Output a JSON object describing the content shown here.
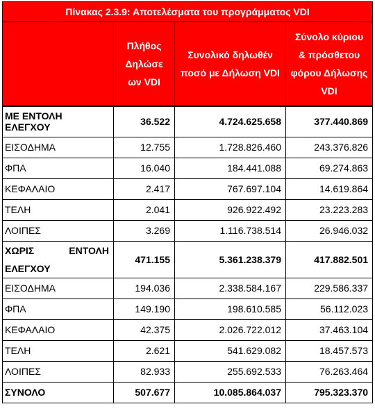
{
  "title": "Πίνακας 2.3.9: Αποτελέσματα του προγράμματος VDI",
  "headers": {
    "col1": "",
    "col2": "Πλήθος Δηλώσε ων VDI",
    "col3": "Συνολικό δηλωθέν ποσό με Δήλωση VDI",
    "col4": "Σύνολο κύριου & πρόσθετου φόρου Δήλωσης VDI"
  },
  "rows": [
    {
      "label": "ΜΕ ΕΝΤΟΛΗ ΕΛΕΓΧΟΥ",
      "count": "36.522",
      "amount": "4.724.625.658",
      "tax": "377.440.869"
    },
    {
      "label": "ΕΙΣΟΔΗΜΑ",
      "count": "12.755",
      "amount": "1.728.826.460",
      "tax": "243.376.826"
    },
    {
      "label": "ΦΠΑ",
      "count": "16.040",
      "amount": "184.441.088",
      "tax": "69.274.863"
    },
    {
      "label": "ΚΕΦΑΛΑΙΟ",
      "count": "2.417",
      "amount": "767.697.104",
      "tax": "14.619.864"
    },
    {
      "label": "ΤΕΛΗ",
      "count": "2.041",
      "amount": "926.922.492",
      "tax": "23.223.283"
    },
    {
      "label": "ΛΟΙΠΕΣ",
      "count": "3.269",
      "amount": "1.116.738.514",
      "tax": "26.946.032"
    },
    {
      "label_a": "ΧΩΡΙΣ",
      "label_b": "ΕΝΤΟΛΗ",
      "label_c": "ΕΛΕΓΧΟΥ",
      "count": "471.155",
      "amount": "5.361.238.379",
      "tax": "417.882.501"
    },
    {
      "label": "ΕΙΣΟΔΗΜΑ",
      "count": "194.036",
      "amount": "2.338.584.167",
      "tax": "229.586.337"
    },
    {
      "label": "ΦΠΑ",
      "count": "149.190",
      "amount": "198.610.585",
      "tax": "56.112.023"
    },
    {
      "label": "ΚΕΦΑΛΑΙΟ",
      "count": "42.375",
      "amount": "2.026.722.012",
      "tax": "37.463.104"
    },
    {
      "label": "ΤΕΛΗ",
      "count": "2.621",
      "amount": "541.629.082",
      "tax": "18.457.573"
    },
    {
      "label": "ΛΟΙΠΕΣ",
      "count": "82.933",
      "amount": "255.692.533",
      "tax": "76.263.464"
    },
    {
      "label": "ΣΥΝΟΛΟ",
      "count": "507.677",
      "amount": "10.085.864.037",
      "tax": "795.323.370"
    }
  ]
}
